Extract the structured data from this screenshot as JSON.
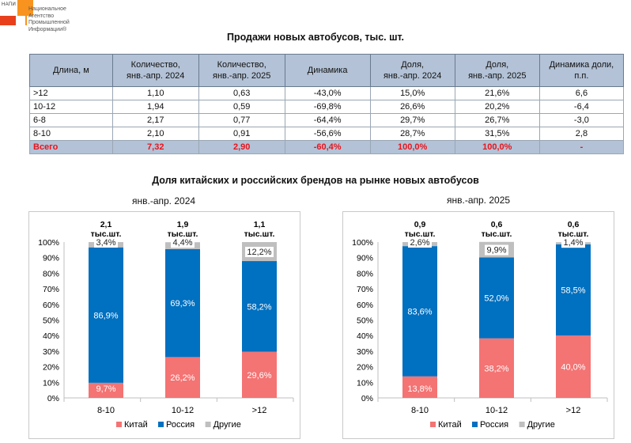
{
  "logo": {
    "abbr": "НАПИ",
    "lines": [
      "Национальное",
      "Агентство",
      "Промышленной",
      "Информации®"
    ]
  },
  "table_title": "Продажи новых автобусов, тыс. шт.",
  "table": {
    "headers": [
      [
        "Длина, м"
      ],
      [
        "Количество,",
        "янв.-апр. 2024"
      ],
      [
        "Количество,",
        "янв.-апр. 2025"
      ],
      [
        "Динамика"
      ],
      [
        "Доля,",
        "янв.-апр. 2024"
      ],
      [
        "Доля,",
        "янв.-апр. 2025"
      ],
      [
        "Динамика доли,",
        "п.п."
      ]
    ],
    "rows": [
      [
        ">12",
        "1,10",
        "0,63",
        "-43,0%",
        "15,0%",
        "21,6%",
        "6,6"
      ],
      [
        "10-12",
        "1,94",
        "0,59",
        "-69,8%",
        "26,6%",
        "20,2%",
        "-6,4"
      ],
      [
        "6-8",
        "2,17",
        "0,77",
        "-64,4%",
        "29,7%",
        "26,7%",
        "-3,0"
      ],
      [
        "8-10",
        "2,10",
        "0,91",
        "-56,6%",
        "28,7%",
        "31,5%",
        "2,8"
      ]
    ],
    "total": [
      "Всего",
      "7,32",
      "2,90",
      "-60,4%",
      "100,0%",
      "100,0%",
      "-"
    ]
  },
  "charts_title": "Доля китайских и российских брендов на рынке новых автобусов",
  "colors": {
    "china": "#f47373",
    "russia": "#0070c0",
    "other": "#bfbfbf",
    "header_bg": "#b3c2d6",
    "total_text": "#e8141c"
  },
  "chart_data": [
    {
      "type": "bar",
      "stacked": true,
      "title": "янв.-апр. 2024",
      "categories": [
        "8-10",
        "10-12",
        ">12"
      ],
      "totals": [
        [
          "2,1",
          "тыс.шт."
        ],
        [
          "1,9",
          "тыс.шт."
        ],
        [
          "1,1",
          "тыс.шт."
        ]
      ],
      "series": [
        {
          "name": "Китай",
          "values": [
            9.7,
            26.2,
            29.6
          ],
          "labels": [
            "9,7%",
            "26,2%",
            "29,6%"
          ]
        },
        {
          "name": "Россия",
          "values": [
            86.9,
            69.3,
            58.2
          ],
          "labels": [
            "86,9%",
            "69,3%",
            "58,2%"
          ]
        },
        {
          "name": "Другие",
          "values": [
            3.4,
            4.4,
            12.2
          ],
          "labels": [
            "3,4%",
            "4,4%",
            "12,2%"
          ]
        }
      ],
      "yticks": [
        "0%",
        "10%",
        "20%",
        "30%",
        "40%",
        "50%",
        "60%",
        "70%",
        "80%",
        "90%",
        "100%"
      ],
      "ylim": [
        0,
        100
      ],
      "legend": "bottom"
    },
    {
      "type": "bar",
      "stacked": true,
      "title": "янв.-апр. 2025",
      "categories": [
        "8-10",
        "10-12",
        ">12"
      ],
      "totals": [
        [
          "0,9",
          "тыс.шт."
        ],
        [
          "0,6",
          "тыс.шт."
        ],
        [
          "0,6",
          "тыс.шт."
        ]
      ],
      "series": [
        {
          "name": "Китай",
          "values": [
            13.8,
            38.2,
            40.0
          ],
          "labels": [
            "13,8%",
            "38,2%",
            "40,0%"
          ]
        },
        {
          "name": "Россия",
          "values": [
            83.6,
            52.0,
            58.5
          ],
          "labels": [
            "83,6%",
            "52,0%",
            "58,5%"
          ]
        },
        {
          "name": "Другие",
          "values": [
            2.6,
            9.9,
            1.4
          ],
          "labels": [
            "2,6%",
            "9,9%",
            "1,4%"
          ]
        }
      ],
      "yticks": [
        "0%",
        "10%",
        "20%",
        "30%",
        "40%",
        "50%",
        "60%",
        "70%",
        "80%",
        "90%",
        "100%"
      ],
      "ylim": [
        0,
        100
      ],
      "legend": "bottom"
    }
  ]
}
